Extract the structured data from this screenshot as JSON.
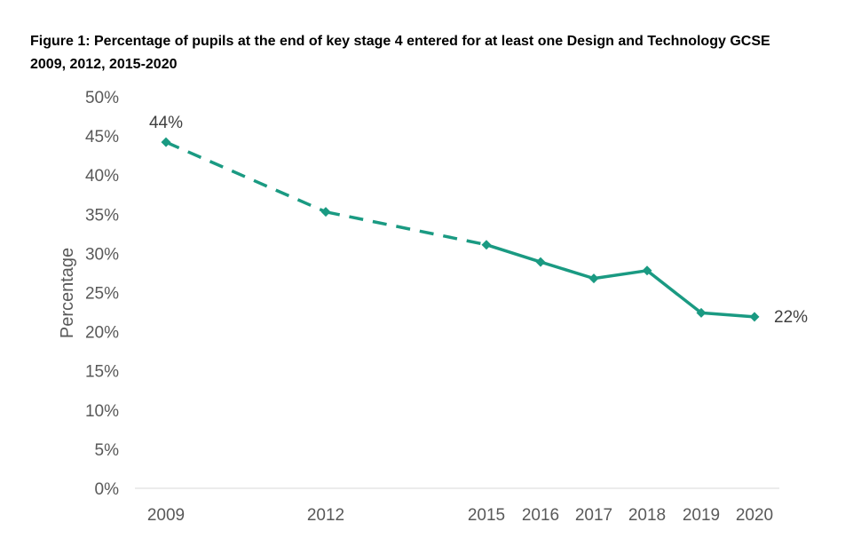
{
  "chart_data": {
    "type": "line",
    "title": "Figure 1: Percentage of pupils at the end of key stage 4 entered for at least one Design and Technology GCSE",
    "subtitle": "2009, 2012, 2015-2020",
    "ylabel": "Percentage",
    "xlabel": "",
    "ylim": [
      0,
      50
    ],
    "ytick_labels": [
      "0%",
      "5%",
      "10%",
      "15%",
      "20%",
      "25%",
      "30%",
      "35%",
      "40%",
      "45%",
      "50%"
    ],
    "categories": [
      "2009",
      "2012",
      "2015",
      "2016",
      "2017",
      "2018",
      "2019",
      "2020"
    ],
    "values": [
      44.2,
      35.3,
      31.1,
      28.9,
      26.8,
      27.8,
      22.4,
      21.9
    ],
    "dashed_segment": [
      "2009",
      "2015"
    ],
    "data_labels": [
      {
        "category": "2009",
        "text": "44%"
      },
      {
        "category": "2020",
        "text": "22%"
      }
    ],
    "series_color": "#1a9a82",
    "grid": false,
    "legend": "none"
  }
}
